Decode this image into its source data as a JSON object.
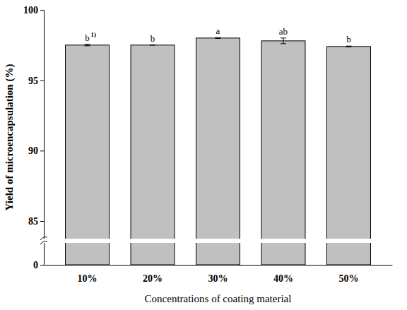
{
  "chart_data": {
    "type": "bar",
    "x_label": "Concentrations of coating material",
    "y_label": "Yield of microencapsulation (%)",
    "categories": [
      "10%",
      "20%",
      "30%",
      "40%",
      "50%"
    ],
    "values": [
      97.5,
      97.5,
      98.0,
      97.8,
      97.4
    ],
    "errors": [
      0.05,
      0.0,
      0.03,
      0.2,
      0.03
    ],
    "annotations": [
      "b",
      "b",
      "a",
      "ab",
      "b"
    ],
    "footnote_mark": "1)",
    "color": "#c0c0c0",
    "ylim": [
      0,
      100
    ],
    "yticks": [
      0,
      85,
      90,
      95,
      100
    ],
    "grid": false
  }
}
